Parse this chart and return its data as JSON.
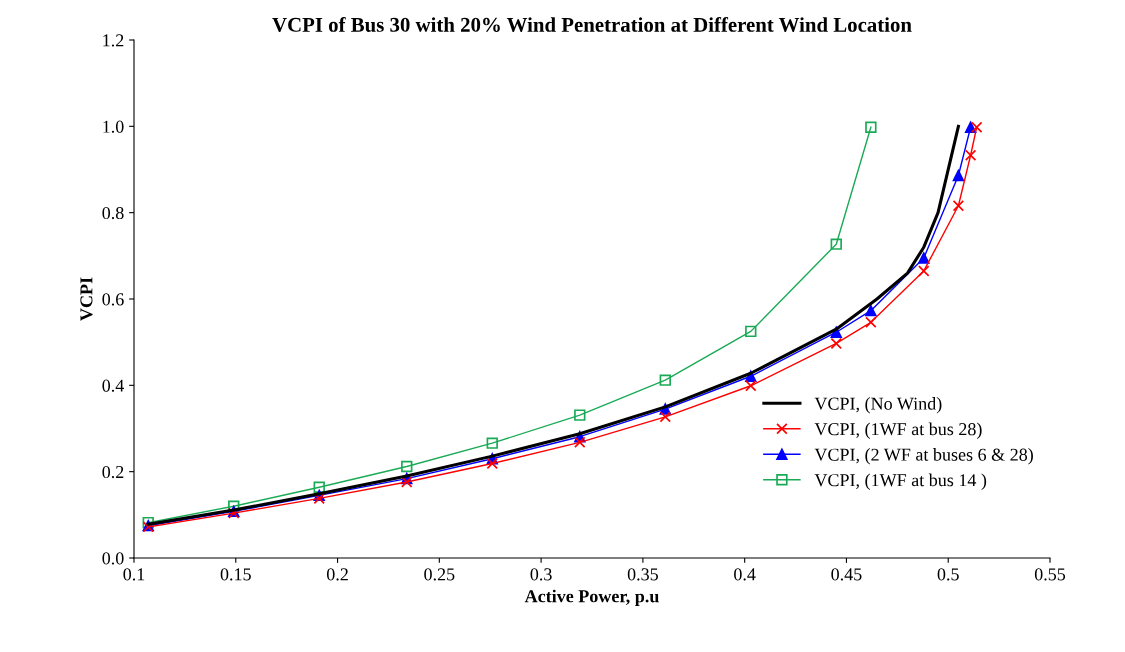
{
  "chart_data": {
    "type": "line",
    "title": "VCPI of Bus 30 with 20% Wind Penetration at Different Wind Location",
    "xlabel": "Active Power, p.u",
    "ylabel": "VCPI",
    "xlim": [
      0.1,
      0.55
    ],
    "xticks": [
      0.1,
      0.15,
      0.2,
      0.25,
      0.3,
      0.35,
      0.4,
      0.45,
      0.5,
      0.55
    ],
    "ylim": [
      0.0,
      1.2
    ],
    "yticks": [
      {
        "value": 0,
        "label": "0.0"
      },
      0.2,
      0.4,
      0.6,
      0.8,
      {
        "value": 1,
        "label": "1.0"
      },
      1.2
    ],
    "grid": false,
    "legend": "bottom right",
    "series": [
      {
        "name": "VCPI, (No Wind)",
        "color": "#000000",
        "marker": "none",
        "x": [
          0.107,
          0.149,
          0.191,
          0.234,
          0.276,
          0.319,
          0.361,
          0.403,
          0.445,
          0.465,
          0.48,
          0.488,
          0.495,
          0.505
        ],
        "values": [
          0.078,
          0.111,
          0.149,
          0.19,
          0.236,
          0.288,
          0.35,
          0.428,
          0.53,
          0.6,
          0.66,
          0.72,
          0.8,
          1.0
        ]
      },
      {
        "name": "VCPI, (1WF at bus 28)",
        "color": "#ff0000",
        "marker": "cross",
        "x": [
          0.107,
          0.149,
          0.191,
          0.234,
          0.276,
          0.319,
          0.361,
          0.403,
          0.445,
          0.462,
          0.488,
          0.505,
          0.511,
          0.514
        ],
        "values": [
          0.072,
          0.104,
          0.138,
          0.176,
          0.219,
          0.268,
          0.327,
          0.399,
          0.497,
          0.546,
          0.665,
          0.816,
          0.933,
          0.998
        ]
      },
      {
        "name": "VCPI, (2 WF at buses 6 & 28)",
        "color": "#0000ff",
        "marker": "triangle",
        "x": [
          0.107,
          0.149,
          0.191,
          0.234,
          0.276,
          0.319,
          0.361,
          0.403,
          0.445,
          0.462,
          0.488,
          0.505,
          0.511
        ],
        "values": [
          0.075,
          0.108,
          0.145,
          0.184,
          0.23,
          0.281,
          0.345,
          0.421,
          0.523,
          0.573,
          0.695,
          0.886,
          0.998
        ]
      },
      {
        "name": "VCPI, (1WF at bus 14 )",
        "color": "#1aaa55",
        "marker": "square",
        "x": [
          0.107,
          0.149,
          0.191,
          0.234,
          0.276,
          0.319,
          0.361,
          0.403,
          0.445,
          0.462
        ],
        "values": [
          0.082,
          0.12,
          0.164,
          0.212,
          0.266,
          0.331,
          0.412,
          0.525,
          0.727,
          0.998
        ]
      }
    ]
  }
}
